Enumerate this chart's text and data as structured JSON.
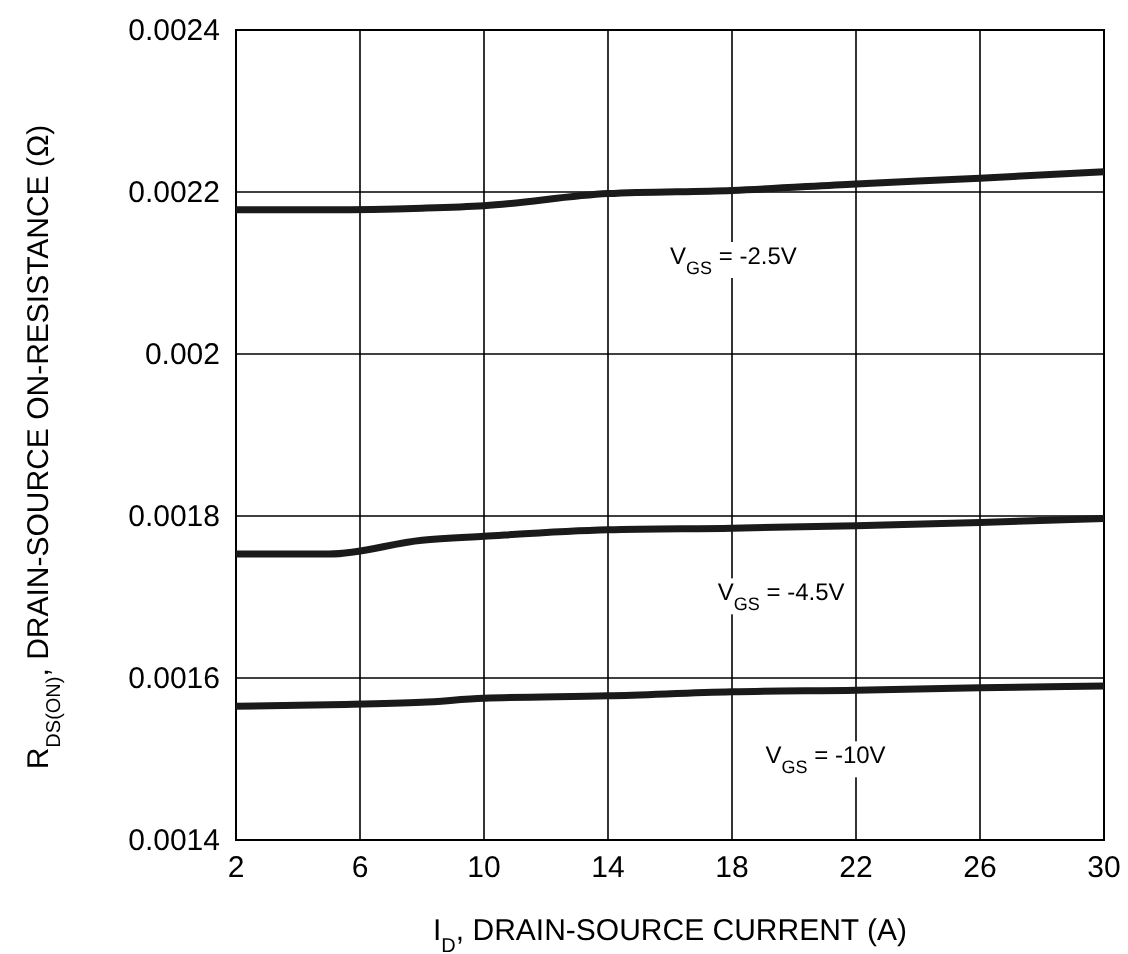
{
  "chart_data": {
    "type": "line",
    "xlabel": "I$_{D}$, DRAIN-SOURCE CURRENT (A)",
    "ylabel": "R$_{DS(ON)}$, DRAIN-SOURCE ON-RESISTANCE (Ω)",
    "x": [
      2,
      5,
      8,
      10,
      14,
      18,
      22,
      26,
      30
    ],
    "series": [
      {
        "color": "#1a1a1a",
        "values": [
          0.002178,
          0.002178,
          0.00218,
          0.002183,
          0.002198,
          0.002202,
          0.00221,
          0.002217,
          0.002225
        ]
      },
      {
        "color": "#1a1a1a",
        "values": [
          0.001753,
          0.001753,
          0.00177,
          0.001775,
          0.001783,
          0.001785,
          0.001788,
          0.001792,
          0.001797
        ]
      },
      {
        "color": "#1a1a1a",
        "values": [
          0.001565,
          0.001567,
          0.00157,
          0.001575,
          0.001578,
          0.001583,
          0.001585,
          0.001588,
          0.00159
        ]
      }
    ],
    "annotations": [
      "V$_{GS}$ = -2.5V",
      "V$_{GS}$ = -4.5V",
      "V$_{GS}$ = -10V"
    ],
    "xlim": [
      2,
      30
    ],
    "xticks": [
      2,
      6,
      10,
      14,
      18,
      22,
      26,
      30
    ],
    "ylim": [
      0.0014,
      0.0024
    ],
    "yticks": [
      0.0014,
      0.0016,
      0.0018,
      0.002,
      0.0022,
      0.0024
    ],
    "grid": true,
    "line_style": "solid",
    "marker": "none"
  }
}
